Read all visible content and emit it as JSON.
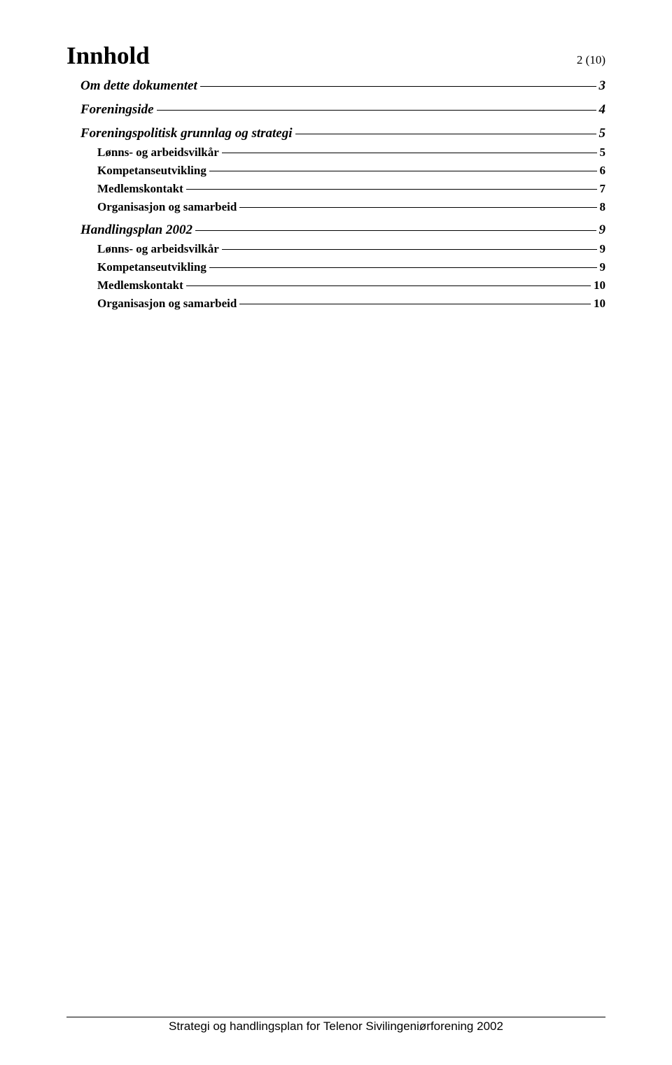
{
  "page_number_label": "2 (10)",
  "title": "Innhold",
  "toc": [
    {
      "level": 1,
      "label": "Om dette dokumentet",
      "page": "3"
    },
    {
      "level": 1,
      "label": "Foreningside",
      "page": "4"
    },
    {
      "level": 1,
      "label": "Foreningspolitisk grunnlag og strategi",
      "page": "5"
    },
    {
      "level": 2,
      "label": "Lønns- og arbeidsvilkår",
      "page": "5"
    },
    {
      "level": 2,
      "label": "Kompetanseutvikling",
      "page": "6"
    },
    {
      "level": 2,
      "label": "Medlemskontakt",
      "page": "7"
    },
    {
      "level": 2,
      "label": "Organisasjon og samarbeid",
      "page": "8"
    },
    {
      "level": 1,
      "label": "Handlingsplan 2002",
      "page": "9"
    },
    {
      "level": 2,
      "label": "Lønns- og arbeidsvilkår",
      "page": "9"
    },
    {
      "level": 2,
      "label": "Kompetanseutvikling",
      "page": "9"
    },
    {
      "level": 2,
      "label": "Medlemskontakt",
      "page": "10"
    },
    {
      "level": 2,
      "label": "Organisasjon og samarbeid",
      "page": "10"
    }
  ],
  "footer_text": "Strategi og handlingsplan for Telenor Sivilingeniørforening 2002"
}
